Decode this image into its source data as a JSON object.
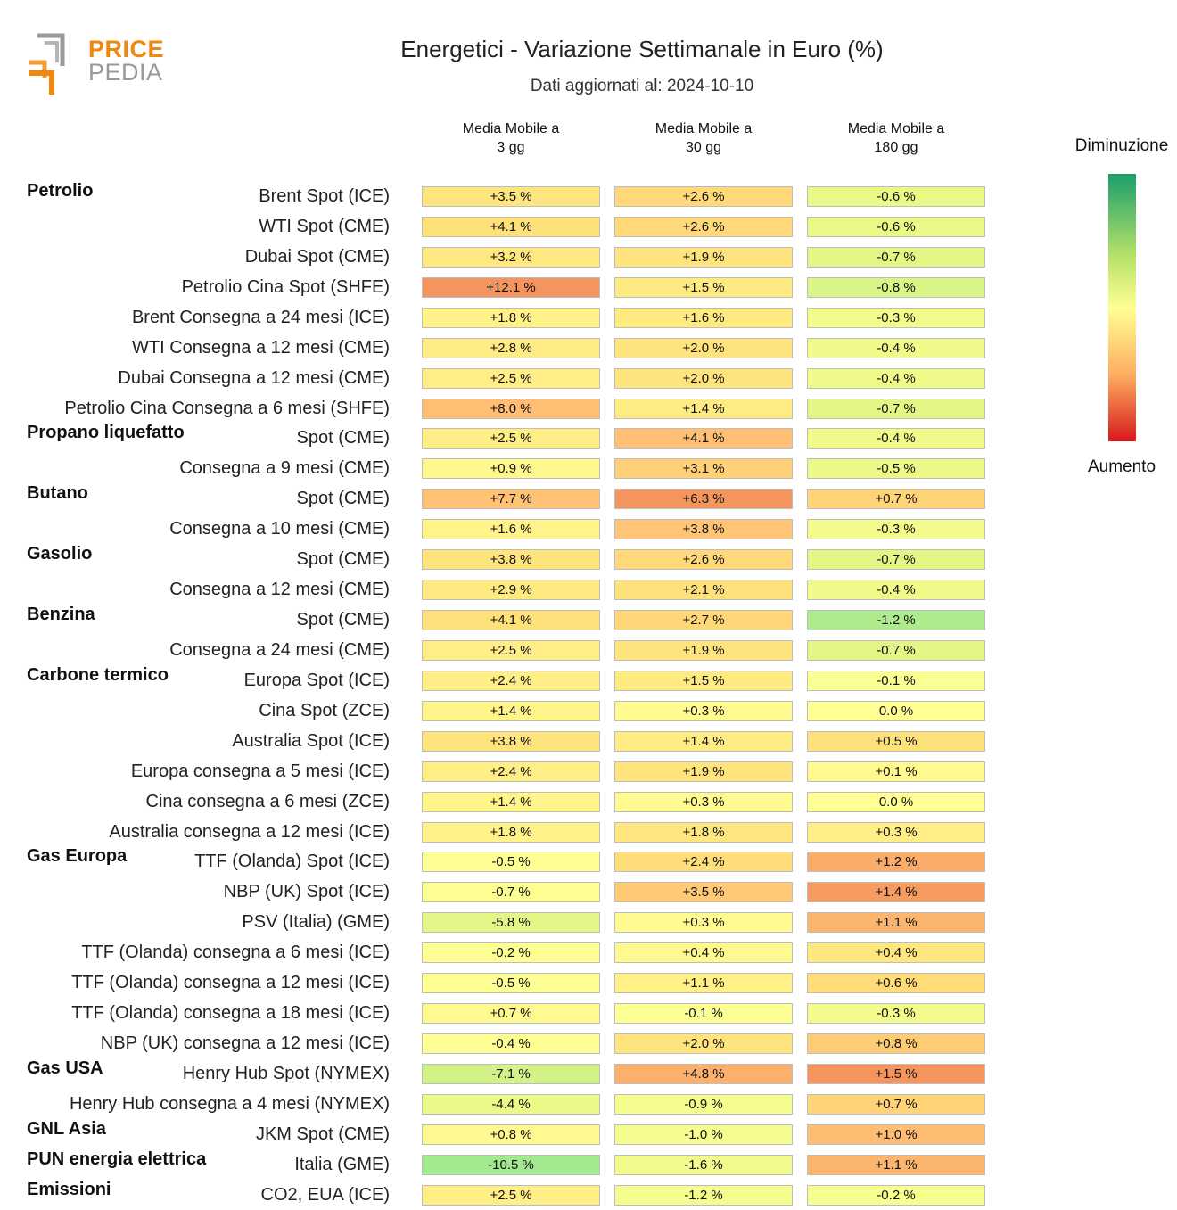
{
  "logo": {
    "line1": "PRICE",
    "line2": "PEDIA"
  },
  "chart_data": {
    "type": "table",
    "title": "Energetici - Variazione Settimanale in Euro (%)",
    "subtitle": "Dati aggiornati al: 2024-10-10",
    "columns": [
      "Media Mobile a\n3 gg",
      "Media Mobile a\n30 gg",
      "Media Mobile a\n180 gg"
    ],
    "legend": {
      "top": "Diminuzione",
      "bottom": "Aumento"
    },
    "colors": {
      "decrease": "#1a9e6b",
      "neutral": "#ffff94",
      "increase": "#d7191c"
    },
    "unit": "%",
    "rows": [
      {
        "group": "Petrolio",
        "label": "Brent Spot (ICE)",
        "values": [
          3.5,
          2.6,
          -0.6
        ]
      },
      {
        "group": "",
        "label": "WTI Spot (CME)",
        "values": [
          4.1,
          2.6,
          -0.6
        ]
      },
      {
        "group": "",
        "label": "Dubai Spot (CME)",
        "values": [
          3.2,
          1.9,
          -0.7
        ]
      },
      {
        "group": "",
        "label": "Petrolio Cina Spot (SHFE)",
        "values": [
          12.1,
          1.5,
          -0.8
        ]
      },
      {
        "group": "",
        "label": "Brent Consegna a 24 mesi (ICE)",
        "values": [
          1.8,
          1.6,
          -0.3
        ]
      },
      {
        "group": "",
        "label": "WTI Consegna a 12 mesi (CME)",
        "values": [
          2.8,
          2.0,
          -0.4
        ]
      },
      {
        "group": "",
        "label": "Dubai Consegna a 12 mesi (CME)",
        "values": [
          2.5,
          2.0,
          -0.4
        ]
      },
      {
        "group": "",
        "label": "Petrolio Cina Consegna a 6 mesi (SHFE)",
        "values": [
          8.0,
          1.4,
          -0.7
        ]
      },
      {
        "group": "Propano liquefatto",
        "label": "Spot (CME)",
        "values": [
          2.5,
          4.1,
          -0.4
        ]
      },
      {
        "group": "",
        "label": "Consegna a 9 mesi (CME)",
        "values": [
          0.9,
          3.1,
          -0.5
        ]
      },
      {
        "group": "Butano",
        "label": "Spot (CME)",
        "values": [
          7.7,
          6.3,
          0.7
        ]
      },
      {
        "group": "",
        "label": "Consegna a 10 mesi (CME)",
        "values": [
          1.6,
          3.8,
          -0.3
        ]
      },
      {
        "group": "Gasolio",
        "label": "Spot (CME)",
        "values": [
          3.8,
          2.6,
          -0.7
        ]
      },
      {
        "group": "",
        "label": "Consegna a 12 mesi (CME)",
        "values": [
          2.9,
          2.1,
          -0.4
        ]
      },
      {
        "group": "Benzina",
        "label": "Spot (CME)",
        "values": [
          4.1,
          2.7,
          -1.2
        ]
      },
      {
        "group": "",
        "label": "Consegna a 24 mesi (CME)",
        "values": [
          2.5,
          1.9,
          -0.7
        ]
      },
      {
        "group": "Carbone termico",
        "label": "Europa Spot (ICE)",
        "values": [
          2.4,
          1.5,
          -0.1
        ]
      },
      {
        "group": "",
        "label": "Cina Spot (ZCE)",
        "values": [
          1.4,
          0.3,
          0.0
        ]
      },
      {
        "group": "",
        "label": "Australia Spot (ICE)",
        "values": [
          3.8,
          1.4,
          0.5
        ]
      },
      {
        "group": "",
        "label": "Europa consegna a 5 mesi (ICE)",
        "values": [
          2.4,
          1.9,
          0.1
        ]
      },
      {
        "group": "",
        "label": "Cina consegna a 6 mesi (ZCE)",
        "values": [
          1.4,
          0.3,
          0.0
        ]
      },
      {
        "group": "",
        "label": "Australia consegna a 12 mesi (ICE)",
        "values": [
          1.8,
          1.8,
          0.3
        ]
      },
      {
        "group": "Gas Europa",
        "label": "TTF (Olanda) Spot (ICE)",
        "values": [
          -0.5,
          2.4,
          1.2
        ]
      },
      {
        "group": "",
        "label": "NBP (UK) Spot (ICE)",
        "values": [
          -0.7,
          3.5,
          1.4
        ]
      },
      {
        "group": "",
        "label": "PSV (Italia) (GME)",
        "values": [
          -5.8,
          0.3,
          1.1
        ]
      },
      {
        "group": "",
        "label": "TTF (Olanda) consegna a 6 mesi (ICE)",
        "values": [
          -0.2,
          0.4,
          0.4
        ]
      },
      {
        "group": "",
        "label": "TTF (Olanda) consegna a 12 mesi (ICE)",
        "values": [
          -0.5,
          1.1,
          0.6
        ]
      },
      {
        "group": "",
        "label": "TTF (Olanda) consegna a 18 mesi (ICE)",
        "values": [
          0.7,
          -0.1,
          -0.3
        ]
      },
      {
        "group": "",
        "label": "NBP (UK) consegna a 12 mesi (ICE)",
        "values": [
          -0.4,
          2.0,
          0.8
        ]
      },
      {
        "group": "Gas USA",
        "label": "Henry Hub Spot (NYMEX)",
        "values": [
          -7.1,
          4.8,
          1.5
        ]
      },
      {
        "group": "",
        "label": "Henry Hub consegna a 4 mesi (NYMEX)",
        "values": [
          -4.4,
          -0.9,
          0.7
        ]
      },
      {
        "group": "GNL Asia",
        "label": "JKM Spot (CME)",
        "values": [
          0.8,
          -1.0,
          1.0
        ]
      },
      {
        "group": "PUN energia elettrica",
        "label": "Italia (GME)",
        "values": [
          -10.5,
          -1.6,
          1.1
        ]
      },
      {
        "group": "Emissioni",
        "label": "CO2, EUA (ICE)",
        "values": [
          2.5,
          -1.2,
          -0.2
        ]
      }
    ]
  }
}
